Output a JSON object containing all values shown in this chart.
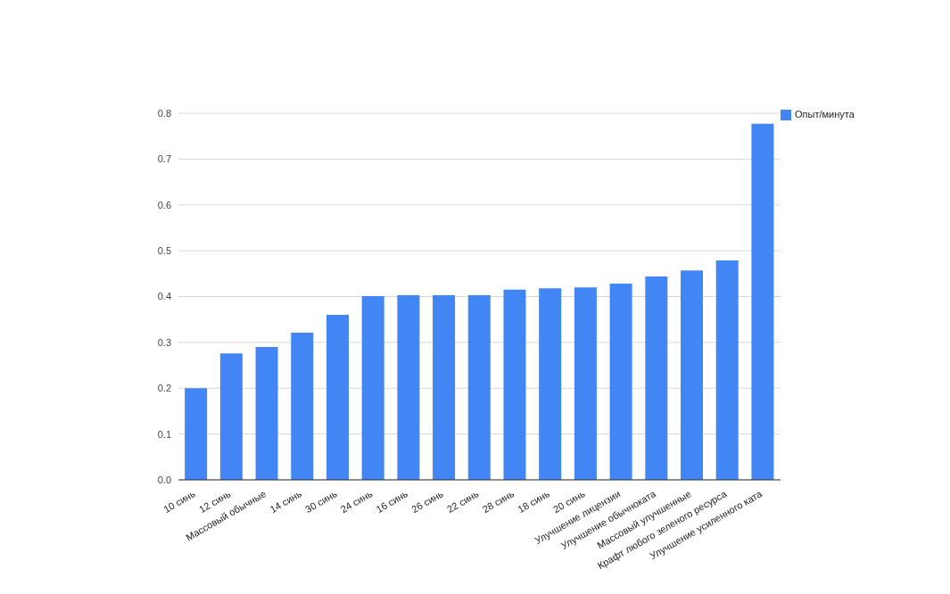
{
  "chart_data": {
    "type": "bar",
    "categories": [
      "10 синь",
      "12 синь",
      "Массовый обычные",
      "14 синь",
      "30 синь",
      "24 синь",
      "16 синь",
      "26 синь",
      "22 синь",
      "28 синь",
      "18 синь",
      "20 синь",
      "Улучшение лицензии",
      "Улучшение обычноката",
      "Массовый улучшенные",
      "Крафт любого зеленого ресурса",
      "Улучшение усиленного ката"
    ],
    "series": [
      {
        "name": "Опыт/минута",
        "color": "#4285f4",
        "values": [
          0.2,
          0.276,
          0.29,
          0.321,
          0.36,
          0.401,
          0.403,
          0.403,
          0.403,
          0.415,
          0.418,
          0.42,
          0.428,
          0.444,
          0.457,
          0.479,
          0.777
        ]
      }
    ],
    "ylim": [
      0,
      0.8
    ],
    "yticks": [
      {
        "value": 0,
        "label": "0.0"
      },
      0.1,
      0.2,
      0.3,
      0.4,
      0.5,
      0.6,
      0.7,
      0.8
    ],
    "grid": "y",
    "legend": "top right"
  }
}
